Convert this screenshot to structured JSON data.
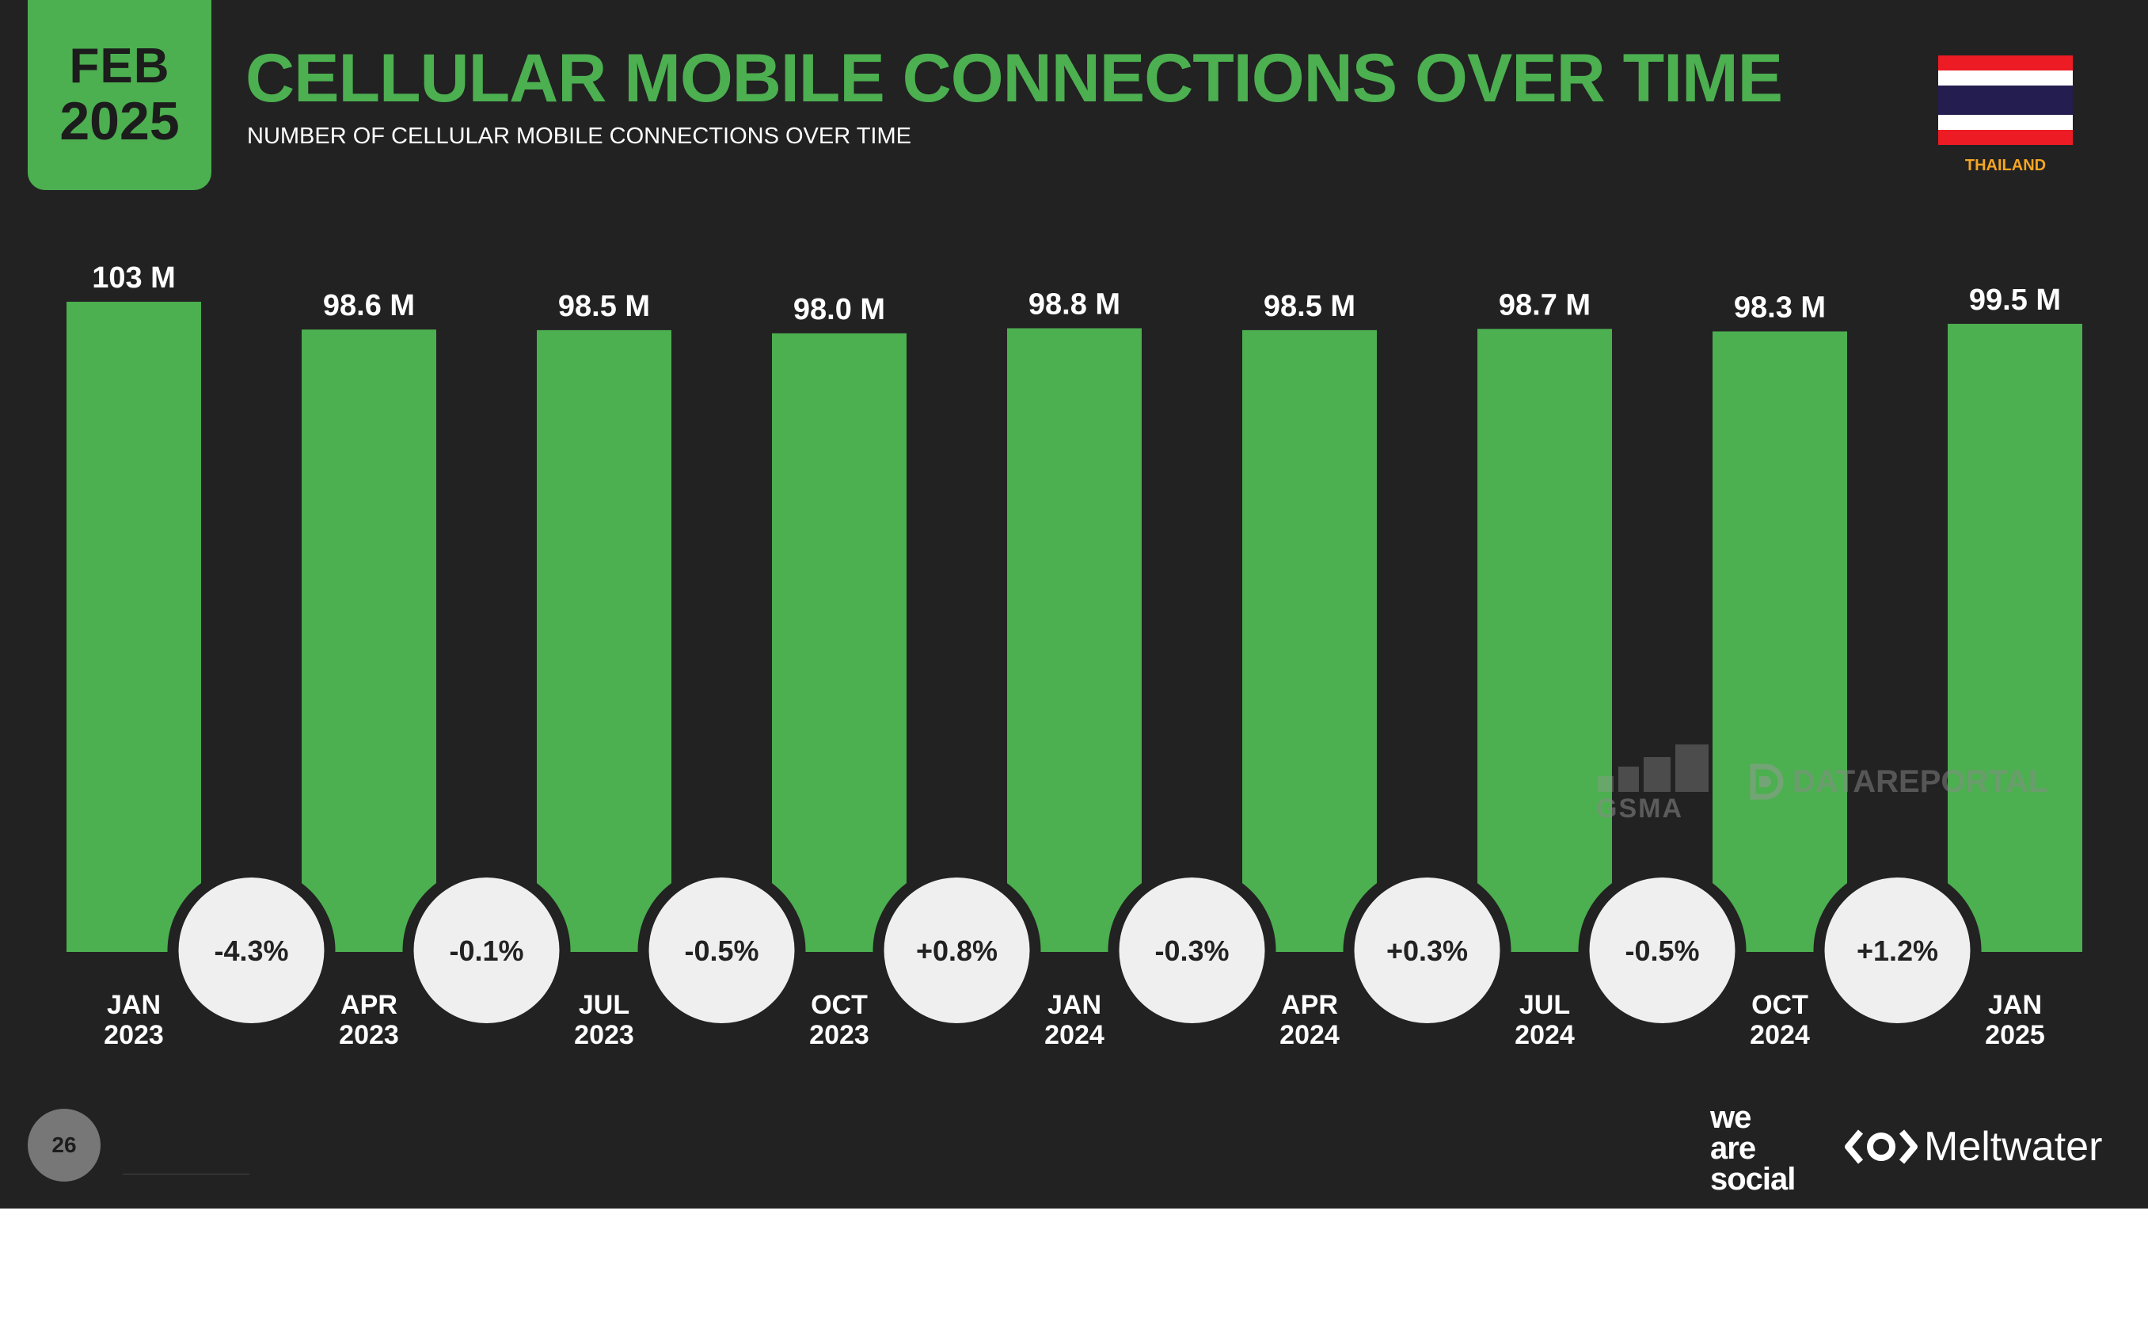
{
  "header": {
    "date_month": "FEB",
    "date_year": "2025",
    "title": "CELLULAR MOBILE CONNECTIONS OVER TIME",
    "subtitle": "NUMBER OF CELLULAR MOBILE CONNECTIONS OVER TIME",
    "country": "THAILAND"
  },
  "colors": {
    "background": "#222222",
    "accent_green": "#4caf50",
    "change_circle": "#efefef",
    "country_label": "#f5a623"
  },
  "chart_data": {
    "type": "bar",
    "categories": [
      [
        "JAN",
        "2023"
      ],
      [
        "APR",
        "2023"
      ],
      [
        "JUL",
        "2023"
      ],
      [
        "OCT",
        "2023"
      ],
      [
        "JAN",
        "2024"
      ],
      [
        "APR",
        "2024"
      ],
      [
        "JUL",
        "2024"
      ],
      [
        "OCT",
        "2024"
      ],
      [
        "JAN",
        "2025"
      ]
    ],
    "values": [
      103,
      98.6,
      98.5,
      98.0,
      98.8,
      98.5,
      98.7,
      98.3,
      99.5
    ],
    "value_labels": [
      "103 M",
      "98.6 M",
      "98.5 M",
      "98.0 M",
      "98.8 M",
      "98.5 M",
      "98.7 M",
      "98.3 M",
      "99.5 M"
    ],
    "unit": "M",
    "changes": [
      "-4.3%",
      "-0.1%",
      "-0.5%",
      "+0.8%",
      "-0.3%",
      "+0.3%",
      "-0.5%",
      "+1.2%"
    ],
    "ylim": [
      0,
      103
    ],
    "grid": false,
    "legend": "none"
  },
  "watermarks": {
    "gsma": "GSMA",
    "datareportal": "DATAREPORTAL"
  },
  "footer": {
    "page_number": "26",
    "logo_we_are_social": [
      "we",
      "are",
      "social"
    ],
    "logo_meltwater": "Meltwater"
  }
}
